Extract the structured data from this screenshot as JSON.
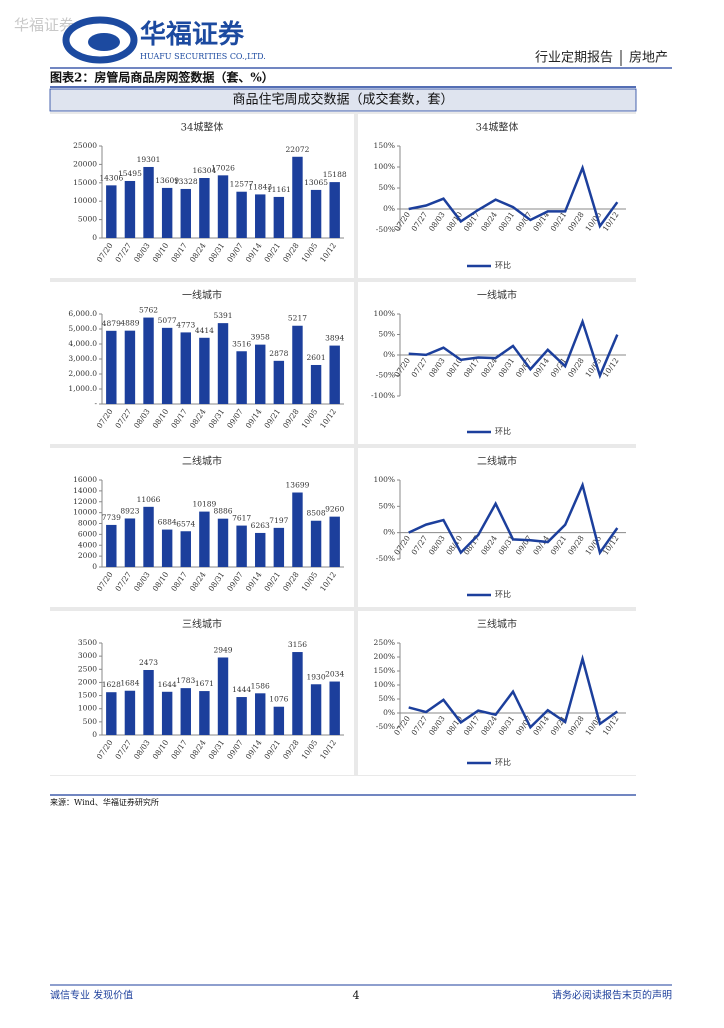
{
  "watermark": "华福证券",
  "header": {
    "company": "华福证券",
    "company_en": "HUAFU SECURITIES CO.,LTD.",
    "report_type": "行业定期报告",
    "sector": "房地产"
  },
  "figure": {
    "title": "图表2：房管局商品房网签数据（套、%）",
    "banner": "商品住宅周成交数据（成交套数，套）",
    "source": "来源：Wind、华福证券研究所"
  },
  "footer": {
    "left": "诚信专业  发现价值",
    "page": "4",
    "right": "请务必阅读报告末页的声明"
  },
  "chart_data": [
    {
      "type": "bar",
      "title": "34城整体",
      "categories": [
        "07/20",
        "07/27",
        "08/03",
        "08/10",
        "08/17",
        "08/24",
        "08/31",
        "09/07",
        "09/14",
        "09/21",
        "09/28",
        "10/05",
        "10/12"
      ],
      "values": [
        14306,
        15495,
        19301,
        13609,
        13328,
        16304,
        17026,
        12577,
        11843,
        11161,
        22072,
        13065,
        15188
      ],
      "color": "#1c3f9c",
      "ylim": [
        0,
        25000
      ],
      "yticks": [
        0,
        5000,
        10000,
        15000,
        20000,
        25000
      ]
    },
    {
      "type": "line",
      "title": "34城整体",
      "categories": [
        "07/20",
        "07/27",
        "08/03",
        "08/10",
        "08/17",
        "08/24",
        "08/31",
        "09/07",
        "09/14",
        "09/21",
        "09/28",
        "10/05",
        "10/12"
      ],
      "series": [
        {
          "name": "环比",
          "color": "#1c3f9c",
          "values": [
            0,
            8.3,
            24.6,
            -29.5,
            -2.1,
            22.3,
            4.4,
            -26.1,
            -5.8,
            -5.8,
            97.8,
            -40.8,
            16.2
          ]
        }
      ],
      "ylim": [
        -50,
        150
      ],
      "yticks": [
        {
          "value": -50,
          "label": "-50%"
        },
        {
          "value": 0,
          "label": "0%"
        },
        {
          "value": 50,
          "label": "50%"
        },
        {
          "value": 100,
          "label": "100%"
        },
        {
          "value": 150,
          "label": "150%"
        }
      ]
    },
    {
      "type": "bar",
      "title": "一线城市",
      "categories": [
        "07/20",
        "07/27",
        "08/03",
        "08/10",
        "08/17",
        "08/24",
        "08/31",
        "09/07",
        "09/14",
        "09/21",
        "09/28",
        "10/05",
        "10/12"
      ],
      "values": [
        4879,
        4889,
        5762,
        5077,
        4773,
        4414,
        5391,
        3516,
        3958,
        2878,
        5217,
        2601,
        3894
      ],
      "color": "#1c3f9c",
      "ylim": [
        0,
        6000
      ],
      "yticks": [
        {
          "value": 0,
          "label": "-"
        },
        {
          "value": 1000,
          "label": "1,000.0"
        },
        {
          "value": 2000,
          "label": "2,000.0"
        },
        {
          "value": 3000,
          "label": "3,000.0"
        },
        {
          "value": 4000,
          "label": "4,000.0"
        },
        {
          "value": 5000,
          "label": "5,000.0"
        },
        {
          "value": 6000,
          "label": "6,000.0"
        }
      ]
    },
    {
      "type": "line",
      "title": "一线城市",
      "categories": [
        "07/20",
        "07/27",
        "08/03",
        "08/10",
        "08/17",
        "08/24",
        "08/31",
        "09/07",
        "09/14",
        "09/21",
        "09/28",
        "10/05",
        "10/12"
      ],
      "series": [
        {
          "name": "环比",
          "color": "#1c3f9c",
          "values": [
            3,
            0.2,
            17.9,
            -11.9,
            -6,
            -7.5,
            22.1,
            -34.8,
            12.6,
            -27.3,
            81.3,
            -50.1,
            49.7
          ]
        }
      ],
      "ylim": [
        -100,
        100
      ],
      "yticks": [
        {
          "value": -100,
          "label": "-100%"
        },
        {
          "value": -50,
          "label": "-50%"
        },
        {
          "value": 0,
          "label": "0%"
        },
        {
          "value": 50,
          "label": "50%"
        },
        {
          "value": 100,
          "label": "100%"
        }
      ]
    },
    {
      "type": "bar",
      "title": "二线城市",
      "categories": [
        "07/20",
        "07/27",
        "08/03",
        "08/10",
        "08/17",
        "08/24",
        "08/31",
        "09/07",
        "09/14",
        "09/21",
        "09/28",
        "10/05",
        "10/12"
      ],
      "values": [
        7739,
        8923,
        11066,
        6884,
        6574,
        10189,
        8886,
        7617,
        6263,
        7197,
        13699,
        8508,
        9260
      ],
      "color": "#1c3f9c",
      "ylim": [
        0,
        16000
      ],
      "yticks": [
        0,
        2000,
        4000,
        6000,
        8000,
        10000,
        12000,
        14000,
        16000
      ]
    },
    {
      "type": "line",
      "title": "二线城市",
      "categories": [
        "07/20",
        "07/27",
        "08/03",
        "08/10",
        "08/17",
        "08/24",
        "08/31",
        "09/07",
        "09/14",
        "09/21",
        "09/28",
        "10/05",
        "10/12"
      ],
      "series": [
        {
          "name": "环比",
          "color": "#1c3f9c",
          "values": [
            0,
            15.3,
            24,
            -37.8,
            -4.5,
            55,
            -12.8,
            -14.3,
            -17.8,
            14.9,
            90.3,
            -37.9,
            8.8
          ]
        }
      ],
      "ylim": [
        -50,
        100
      ],
      "yticks": [
        {
          "value": -50,
          "label": "-50%"
        },
        {
          "value": 0,
          "label": "0%"
        },
        {
          "value": 50,
          "label": "50%"
        },
        {
          "value": 100,
          "label": "100%"
        }
      ]
    },
    {
      "type": "bar",
      "title": "三线城市",
      "categories": [
        "07/20",
        "07/27",
        "08/03",
        "08/10",
        "08/17",
        "08/24",
        "08/31",
        "09/07",
        "09/14",
        "09/21",
        "09/28",
        "10/05",
        "10/12"
      ],
      "values": [
        1628,
        1684,
        2473,
        1644,
        1783,
        1671,
        2949,
        1444,
        1586,
        1076,
        3156,
        1930,
        2034
      ],
      "color": "#1c3f9c",
      "ylim": [
        0,
        3500
      ],
      "yticks": [
        0,
        500,
        1000,
        1500,
        2000,
        2500,
        3000,
        3500
      ]
    },
    {
      "type": "line",
      "title": "三线城市",
      "categories": [
        "07/20",
        "07/27",
        "08/03",
        "08/10",
        "08/17",
        "08/24",
        "08/31",
        "09/07",
        "09/14",
        "09/21",
        "09/28",
        "10/05",
        "10/12"
      ],
      "series": [
        {
          "name": "环比",
          "color": "#1c3f9c",
          "values": [
            20,
            3.4,
            46.9,
            -33.5,
            8.5,
            -6.3,
            76.5,
            -51,
            9.8,
            -32.2,
            193.3,
            -38.8,
            5.4
          ]
        }
      ],
      "ylim": [
        -50,
        250
      ],
      "yticks": [
        {
          "value": -50,
          "label": "-50%"
        },
        {
          "value": 0,
          "label": "0%"
        },
        {
          "value": 50,
          "label": "50%"
        },
        {
          "value": 100,
          "label": "100%"
        },
        {
          "value": 150,
          "label": "150%"
        },
        {
          "value": 200,
          "label": "200%"
        },
        {
          "value": 250,
          "label": "250%"
        }
      ]
    }
  ]
}
